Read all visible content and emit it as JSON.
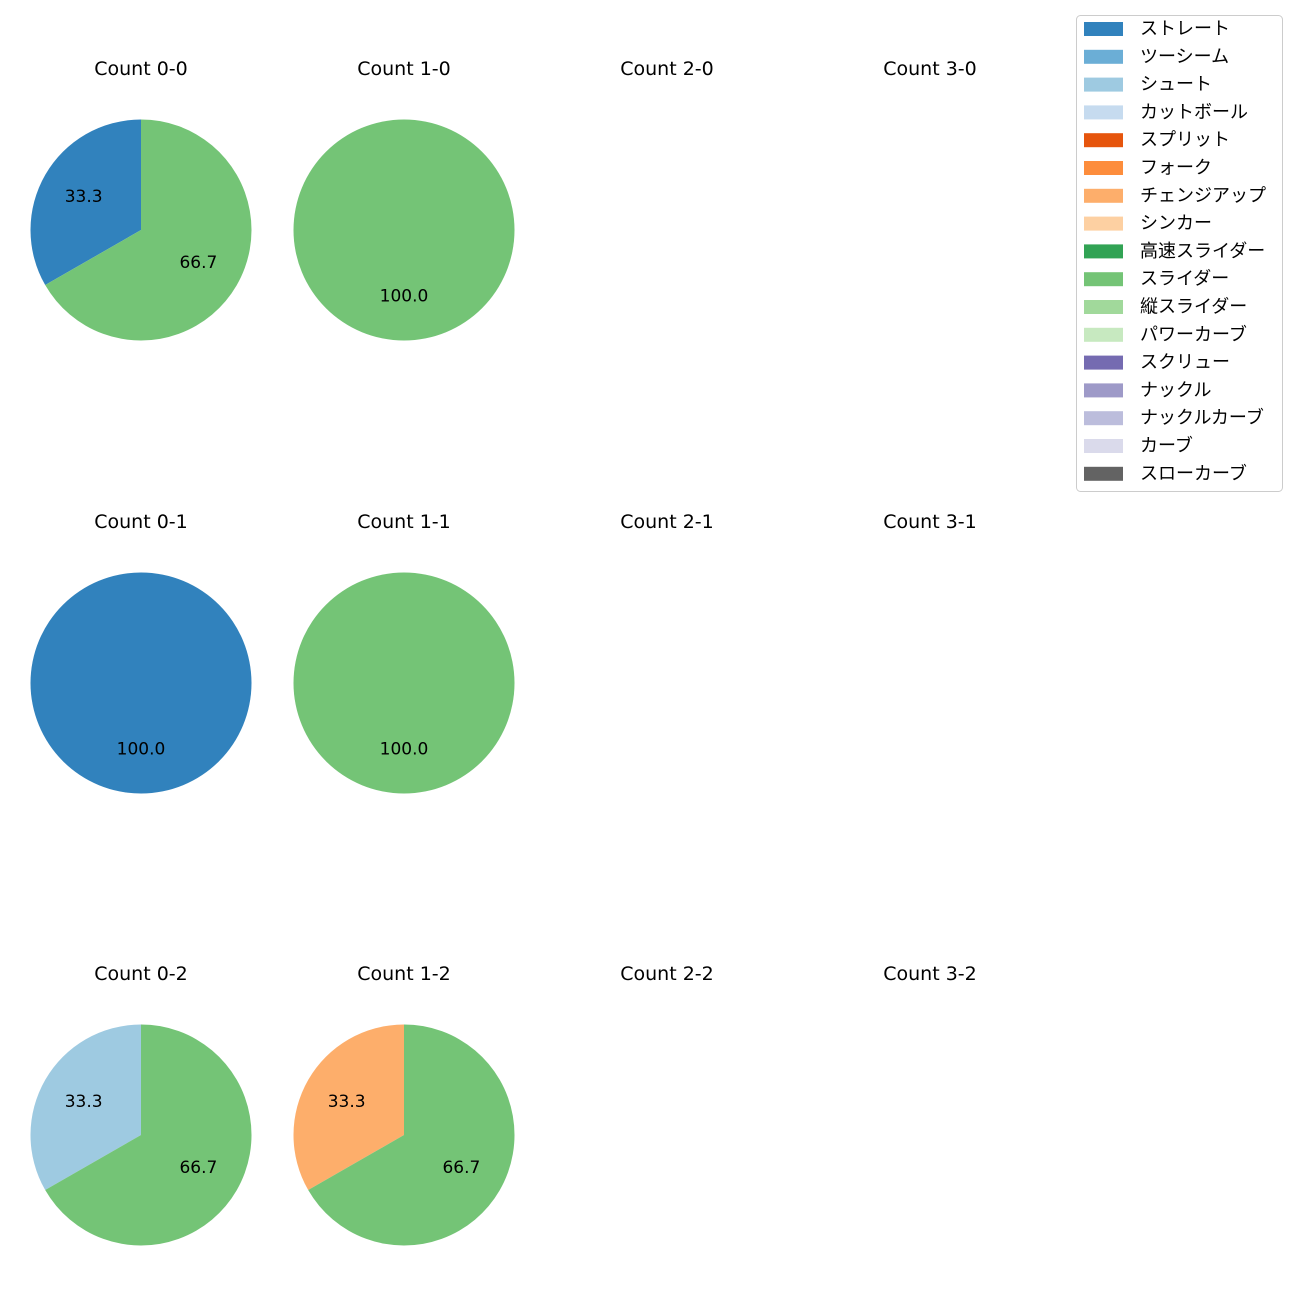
{
  "chart_data": {
    "type": "pie",
    "legend": {
      "placement": "top-right",
      "entries": [
        {
          "name": "ストレート",
          "color": "#3182bd"
        },
        {
          "name": "ツーシーム",
          "color": "#6baed6"
        },
        {
          "name": "シュート",
          "color": "#9ecae1"
        },
        {
          "name": "カットボール",
          "color": "#c6dbef"
        },
        {
          "name": "スプリット",
          "color": "#e6550d"
        },
        {
          "name": "フォーク",
          "color": "#fd8d3c"
        },
        {
          "name": "チェンジアップ",
          "color": "#fdae6b"
        },
        {
          "name": "シンカー",
          "color": "#fdd0a2"
        },
        {
          "name": "高速スライダー",
          "color": "#31a354"
        },
        {
          "name": "スライダー",
          "color": "#74c476"
        },
        {
          "name": "縦スライダー",
          "color": "#a1d99b"
        },
        {
          "name": "パワーカーブ",
          "color": "#c7e9c0"
        },
        {
          "name": "スクリュー",
          "color": "#756bb1"
        },
        {
          "name": "ナックル",
          "color": "#9e9ac8"
        },
        {
          "name": "ナックルカーブ",
          "color": "#bcbddc"
        },
        {
          "name": "カーブ",
          "color": "#dadaeb"
        },
        {
          "name": "スローカーブ",
          "color": "#636363"
        }
      ]
    },
    "subplots": [
      {
        "title": "Count 0-0",
        "slices": [
          {
            "pitch": "ストレート",
            "value": 33.3,
            "label": "33.3"
          },
          {
            "pitch": "スライダー",
            "value": 66.7,
            "label": "66.7"
          }
        ]
      },
      {
        "title": "Count 1-0",
        "slices": [
          {
            "pitch": "スライダー",
            "value": 100.0,
            "label": "100.0"
          }
        ]
      },
      {
        "title": "Count 2-0",
        "slices": []
      },
      {
        "title": "Count 3-0",
        "slices": []
      },
      {
        "title": "Count 0-1",
        "slices": [
          {
            "pitch": "ストレート",
            "value": 100.0,
            "label": "100.0"
          }
        ]
      },
      {
        "title": "Count 1-1",
        "slices": [
          {
            "pitch": "スライダー",
            "value": 100.0,
            "label": "100.0"
          }
        ]
      },
      {
        "title": "Count 2-1",
        "slices": []
      },
      {
        "title": "Count 3-1",
        "slices": []
      },
      {
        "title": "Count 0-2",
        "slices": [
          {
            "pitch": "シュート",
            "value": 33.3,
            "label": "33.3"
          },
          {
            "pitch": "スライダー",
            "value": 66.7,
            "label": "66.7"
          }
        ]
      },
      {
        "title": "Count 1-2",
        "slices": [
          {
            "pitch": "チェンジアップ",
            "value": 33.3,
            "label": "33.3"
          },
          {
            "pitch": "スライダー",
            "value": 66.7,
            "label": "66.7"
          }
        ]
      },
      {
        "title": "Count 2-2",
        "slices": []
      },
      {
        "title": "Count 3-2",
        "slices": []
      }
    ]
  }
}
